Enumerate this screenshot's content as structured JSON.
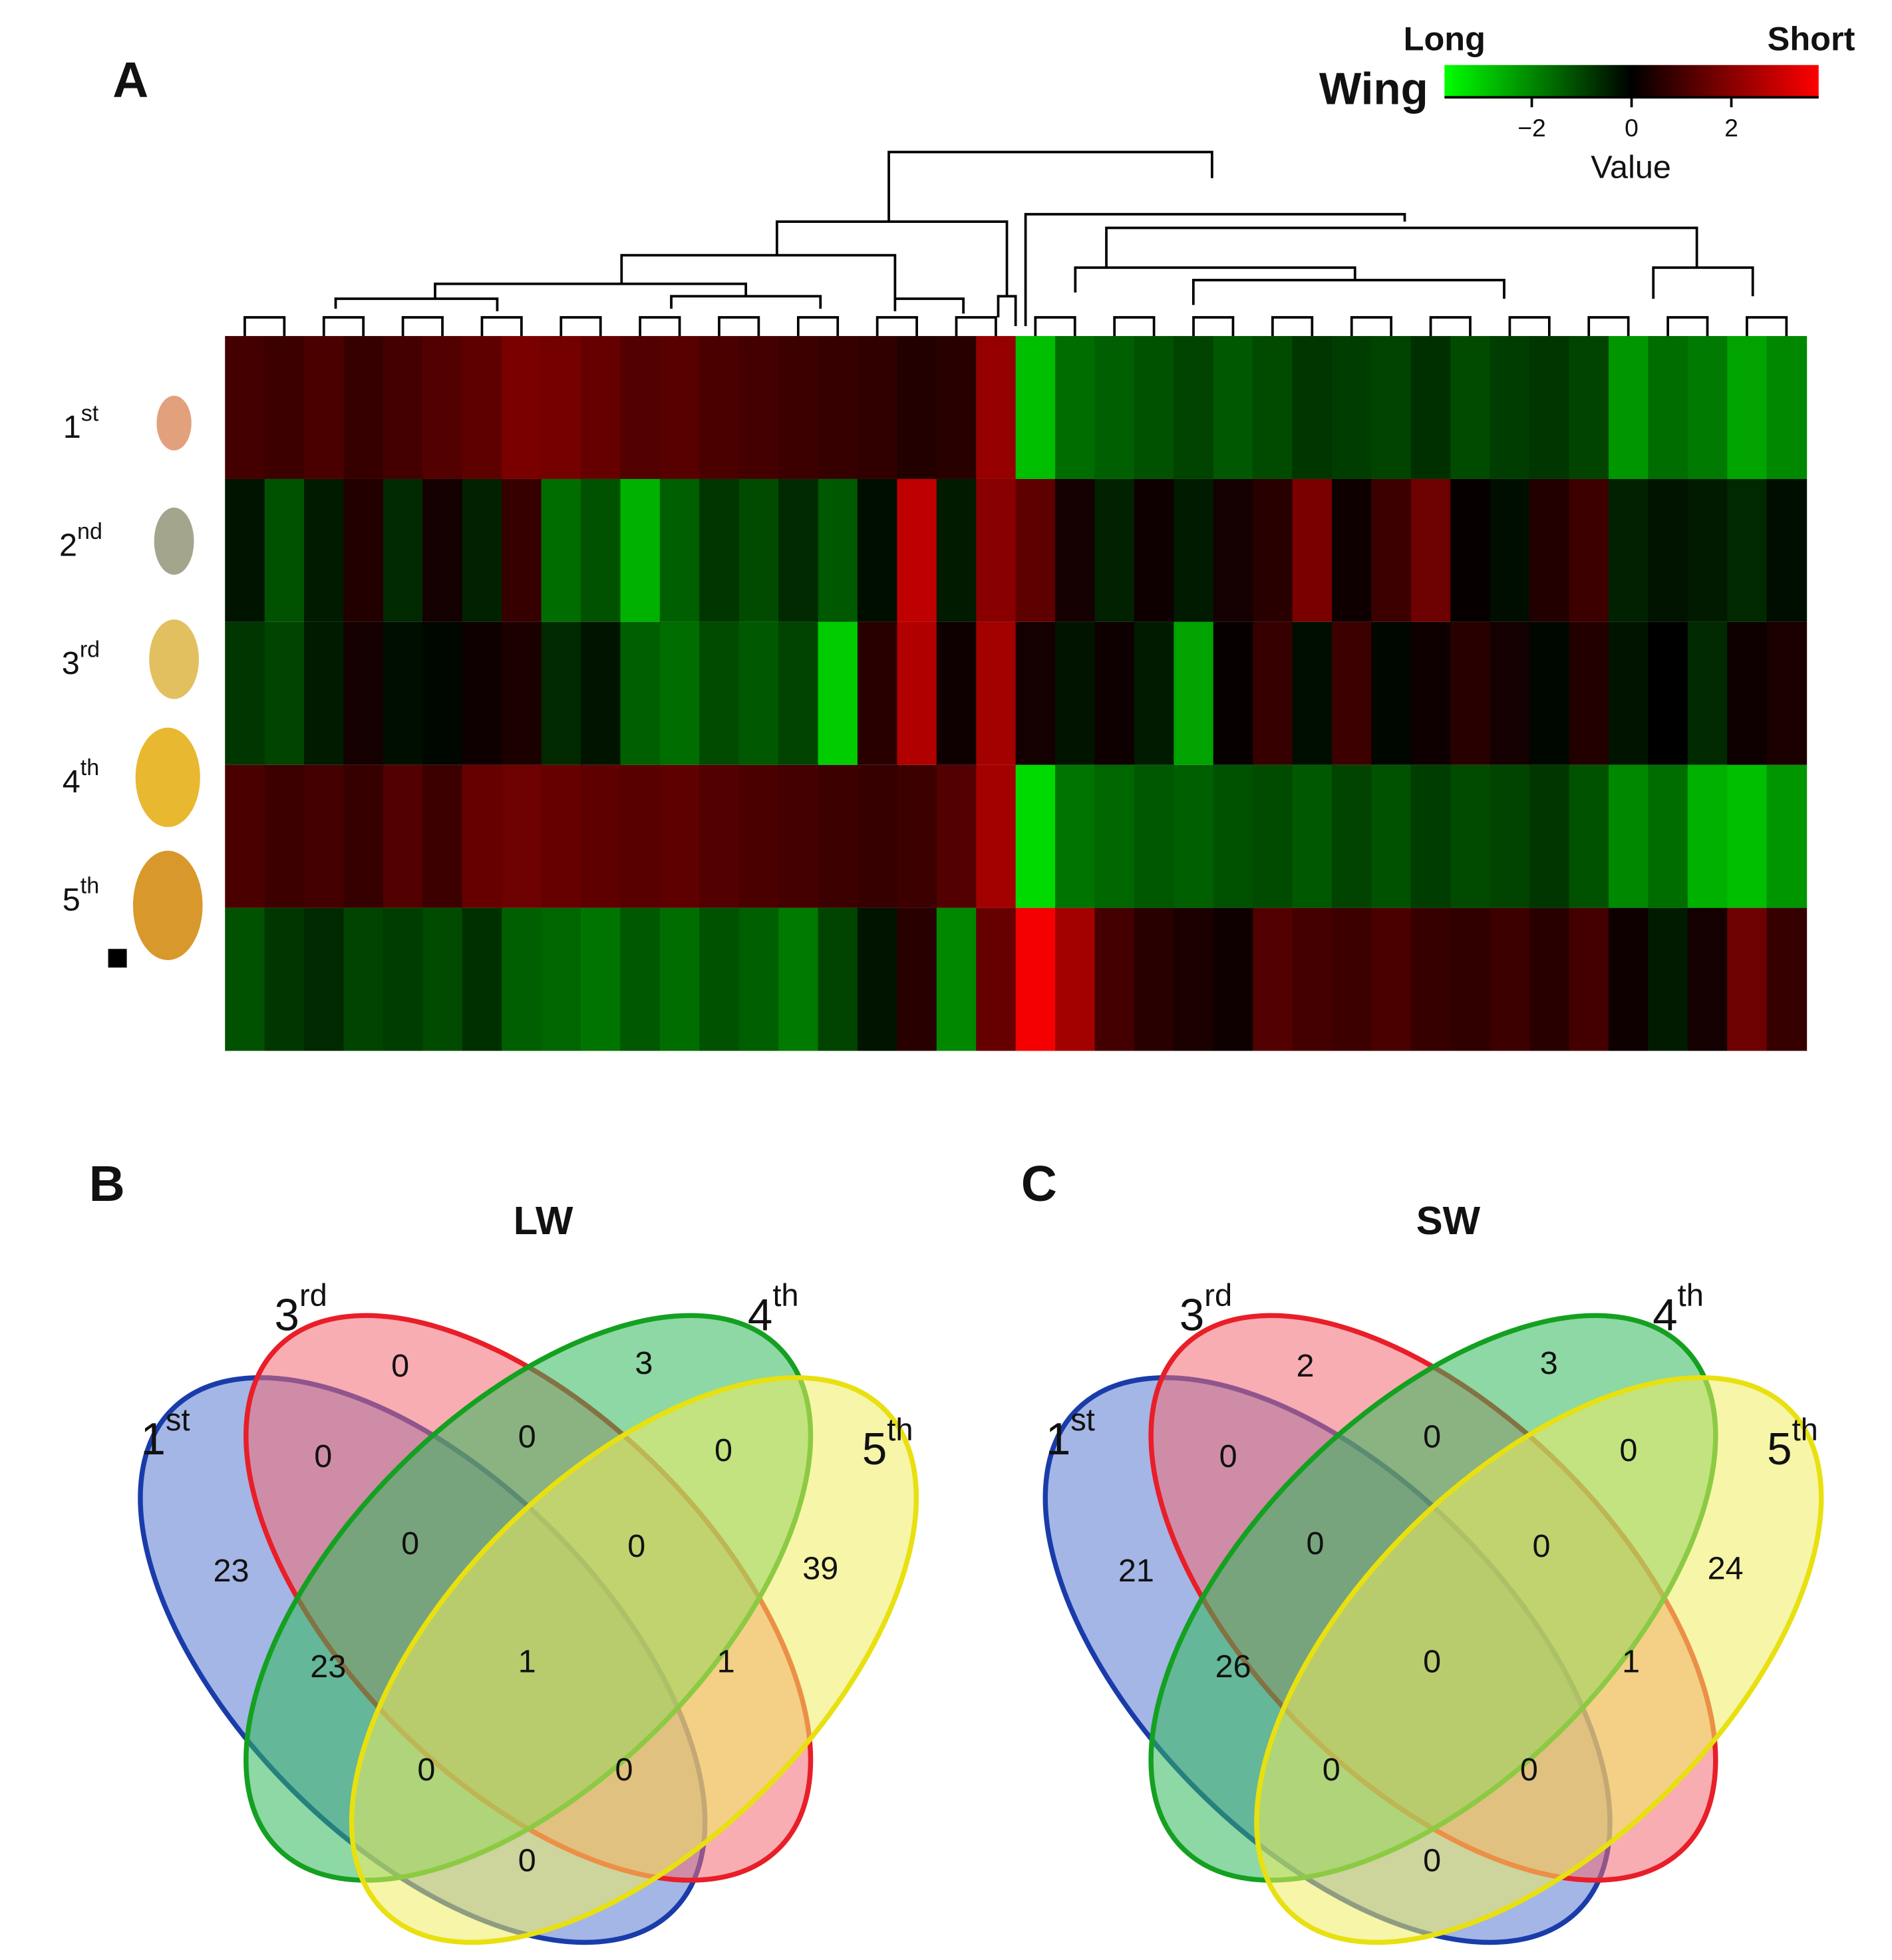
{
  "chart_data": [
    {
      "type": "heatmap",
      "panel": "A",
      "rows": [
        {
          "text": "1",
          "sup": "st"
        },
        {
          "text": "2",
          "sup": "nd"
        },
        {
          "text": "3",
          "sup": "rd"
        },
        {
          "text": "4",
          "sup": "th"
        },
        {
          "text": "5",
          "sup": "th"
        }
      ],
      "values": [
        [
          1.0,
          0.9,
          1.1,
          0.8,
          1.0,
          1.2,
          1.4,
          1.8,
          1.7,
          1.5,
          1.2,
          1.3,
          1.1,
          1.0,
          0.9,
          0.8,
          0.7,
          0.5,
          0.6,
          2.2,
          -2.8,
          -1.6,
          -1.4,
          -1.2,
          -1.0,
          -1.3,
          -1.1,
          -0.8,
          -0.9,
          -1.0,
          -0.7,
          -1.1,
          -0.9,
          -0.8,
          -1.0,
          -2.2,
          -1.6,
          -1.8,
          -2.4,
          -2.0
        ],
        [
          -0.3,
          -1.2,
          -0.4,
          0.5,
          -0.6,
          0.3,
          -0.5,
          0.8,
          -1.6,
          -1.2,
          -2.6,
          -1.4,
          -0.8,
          -1.1,
          -0.6,
          -1.3,
          -0.2,
          2.8,
          -0.4,
          2.0,
          1.4,
          0.3,
          -0.5,
          0.2,
          -0.4,
          0.3,
          0.6,
          1.8,
          0.2,
          0.9,
          1.6,
          0.1,
          -0.2,
          0.5,
          0.9,
          -0.5,
          -0.3,
          -0.4,
          -0.6,
          -0.2
        ],
        [
          -0.8,
          -1.0,
          -0.4,
          0.3,
          -0.2,
          -0.1,
          0.2,
          0.4,
          -0.6,
          -0.3,
          -1.4,
          -1.6,
          -1.1,
          -1.3,
          -1.0,
          -3.0,
          0.6,
          2.6,
          0.2,
          2.4,
          0.3,
          -0.3,
          0.2,
          -0.4,
          -2.4,
          0.1,
          0.8,
          -0.2,
          0.9,
          -0.1,
          0.2,
          0.6,
          0.3,
          -0.1,
          0.5,
          -0.3,
          0.0,
          -0.6,
          0.2,
          0.4
        ],
        [
          1.1,
          0.9,
          1.0,
          0.8,
          1.2,
          0.9,
          1.5,
          1.6,
          1.5,
          1.4,
          1.3,
          1.4,
          1.2,
          1.1,
          1.0,
          0.9,
          0.8,
          0.9,
          1.2,
          2.4,
          -3.2,
          -1.7,
          -1.5,
          -1.3,
          -1.4,
          -1.2,
          -1.1,
          -1.3,
          -1.0,
          -1.2,
          -0.9,
          -1.1,
          -1.0,
          -0.8,
          -1.2,
          -2.0,
          -1.6,
          -2.6,
          -2.8,
          -2.2
        ],
        [
          -1.2,
          -0.8,
          -0.6,
          -1.0,
          -0.9,
          -1.1,
          -0.7,
          -1.4,
          -1.5,
          -1.7,
          -1.3,
          -1.6,
          -1.2,
          -1.4,
          -1.8,
          -1.0,
          -0.3,
          0.6,
          -2.0,
          1.5,
          3.6,
          2.4,
          1.0,
          0.6,
          0.4,
          0.2,
          1.2,
          1.0,
          0.9,
          1.1,
          0.8,
          0.7,
          0.9,
          0.6,
          1.0,
          0.2,
          -0.4,
          0.3,
          1.6,
          0.8
        ]
      ],
      "legend": {
        "title": "Wing",
        "low_label": "Long",
        "high_label": "Short",
        "axis_label": "Value",
        "clim": [
          -3.75,
          3.75
        ],
        "ticks": [
          {
            "value": -2,
            "label": "−2"
          },
          0,
          2
        ],
        "colors": [
          "#00ff00",
          "#000000",
          "#ff0000"
        ]
      }
    },
    {
      "type": "venn",
      "panel": "B",
      "title": "LW",
      "sets": [
        {
          "text": "1",
          "sup": "st",
          "color": "#1a3caa"
        },
        {
          "text": "3",
          "sup": "rd",
          "color": "#e81e28"
        },
        {
          "text": "4",
          "sup": "th",
          "color": "#14a020"
        },
        {
          "text": "5",
          "sup": "th",
          "color": "#e8e010"
        }
      ],
      "values": [
        23,
        0,
        3,
        39,
        0,
        0,
        0,
        0,
        0,
        23,
        1,
        1,
        0,
        0,
        0
      ]
    },
    {
      "type": "venn",
      "panel": "C",
      "title": "SW",
      "sets": [
        {
          "text": "1",
          "sup": "st",
          "color": "#1a3caa"
        },
        {
          "text": "3",
          "sup": "rd",
          "color": "#e81e28"
        },
        {
          "text": "4",
          "sup": "th",
          "color": "#14a020"
        },
        {
          "text": "5",
          "sup": "th",
          "color": "#e8e010"
        }
      ],
      "values": [
        21,
        2,
        3,
        24,
        0,
        0,
        0,
        0,
        0,
        26,
        0,
        1,
        0,
        0,
        0
      ]
    }
  ]
}
